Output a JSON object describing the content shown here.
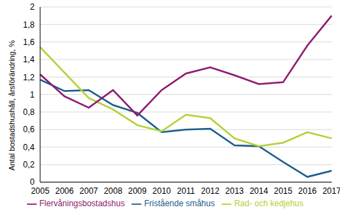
{
  "chart_data": {
    "type": "line",
    "y_label": "Antal bostadshushåll, årsförändring, %",
    "categories": [
      "2005",
      "2006",
      "2007",
      "2008",
      "2009",
      "2010",
      "2011",
      "2012",
      "2013",
      "2014",
      "2015",
      "2016",
      "2017"
    ],
    "series": [
      {
        "name": "Fristående småhus",
        "color": "#1b5e8c",
        "values": [
          1.17,
          1.04,
          1.05,
          0.88,
          0.79,
          0.57,
          0.6,
          0.61,
          0.42,
          0.41,
          0.23,
          0.06,
          0.13
        ]
      },
      {
        "name": "Rad- och kedjehus",
        "color": "#b3d135",
        "values": [
          1.54,
          1.25,
          0.96,
          0.83,
          0.65,
          0.58,
          0.77,
          0.73,
          0.5,
          0.41,
          0.45,
          0.57,
          0.5
        ]
      },
      {
        "name": "Flervåningsbostadshus",
        "color": "#8e1c6e",
        "values": [
          1.23,
          0.98,
          0.85,
          1.05,
          0.76,
          1.05,
          1.24,
          1.31,
          1.22,
          1.12,
          1.14,
          1.56,
          1.9
        ]
      }
    ],
    "ylim": [
      0,
      2
    ],
    "yticks": [
      0,
      {
        "value": 0.2,
        "label": "0,2"
      },
      {
        "value": 0.4,
        "label": "0,4"
      },
      {
        "value": 0.6,
        "label": "0,6"
      },
      {
        "value": 0.8,
        "label": "0,8"
      },
      1,
      {
        "value": 1.2,
        "label": "1,2"
      },
      {
        "value": 1.4,
        "label": "1,4"
      },
      {
        "value": 1.6,
        "label": "1,6"
      },
      {
        "value": 1.8,
        "label": "1,8"
      },
      2
    ],
    "grid": true,
    "legend": "bottom"
  }
}
